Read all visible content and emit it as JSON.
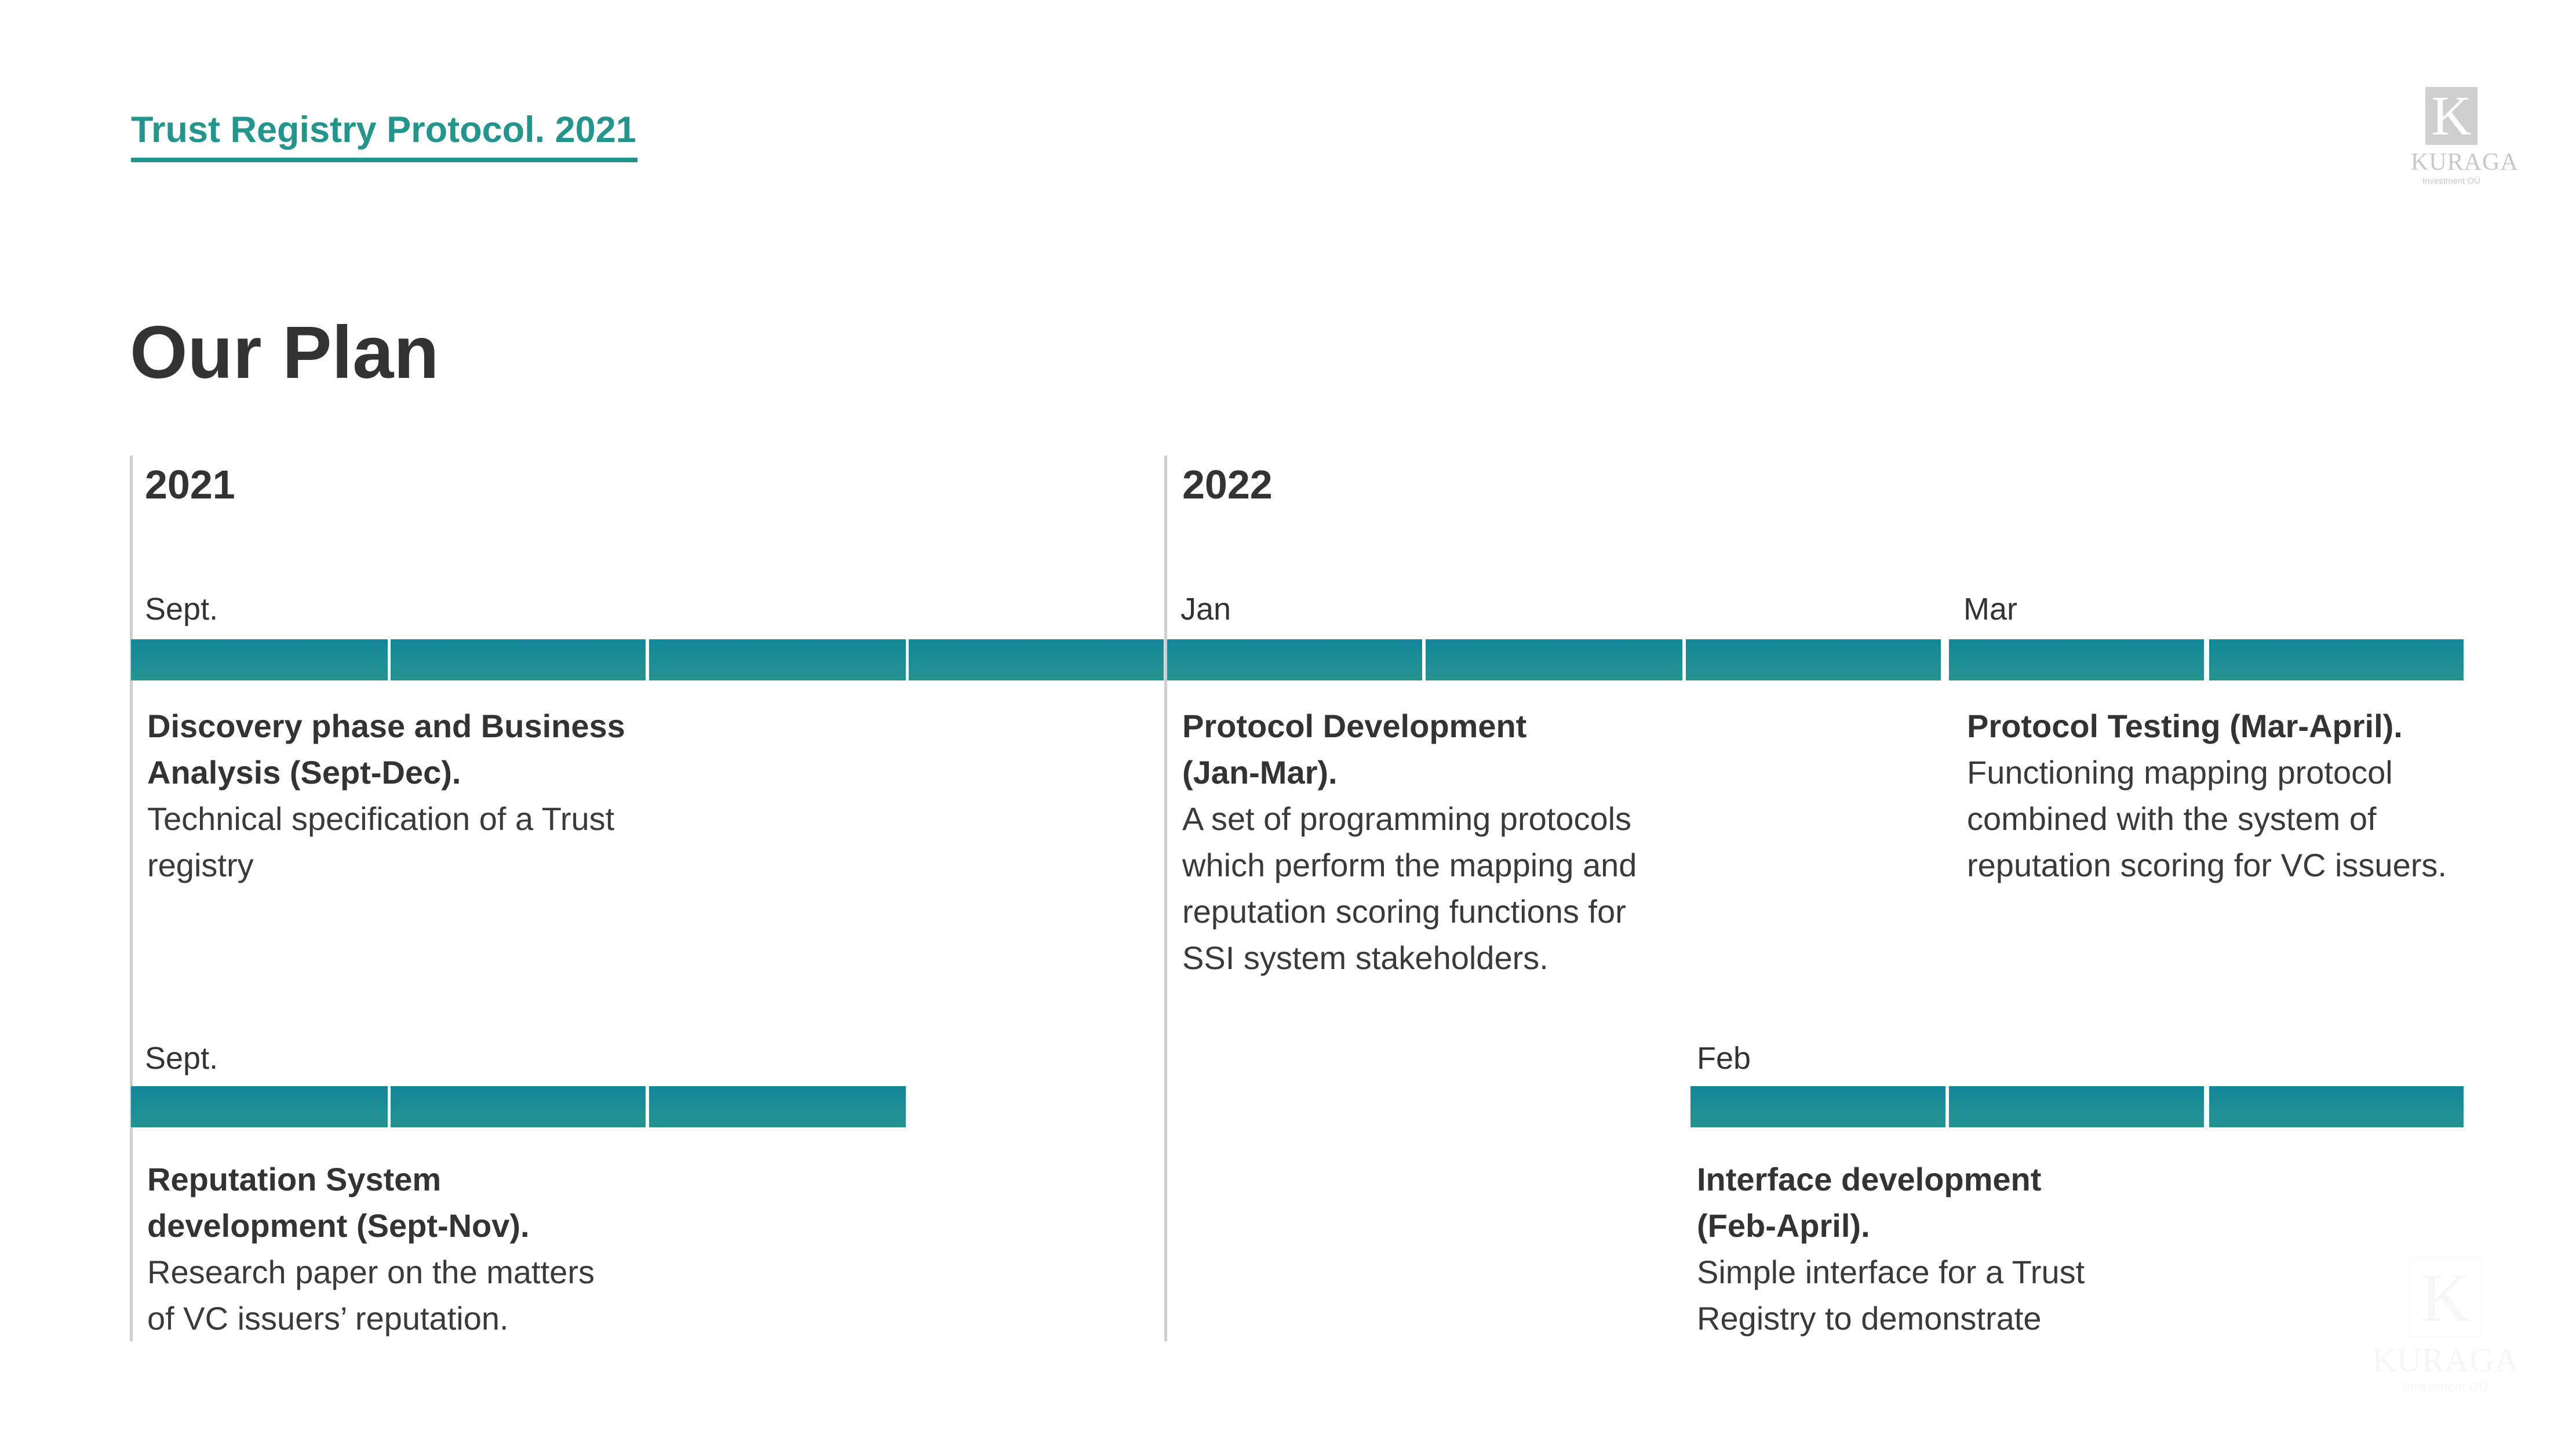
{
  "header": {
    "title": "Trust Registry Protocol. 2021"
  },
  "page_title": "Our Plan",
  "brand": {
    "logo_letter": "K",
    "name": "KURAGA",
    "subtitle": "Investment OÜ",
    "accent_color": "#22958c",
    "bar_color": "#1a8d96"
  },
  "years": [
    "2021",
    "2022"
  ],
  "row1": {
    "months": [
      "Sept.",
      "Jan",
      "Mar"
    ],
    "items": [
      {
        "title_lines": [
          "Discovery phase and Business",
          "Analysis (Sept-Dec)."
        ],
        "desc_lines": [
          "Technical specification of a Trust",
          "registry"
        ]
      },
      {
        "title_lines": [
          "Protocol Development",
          "(Jan-Mar)."
        ],
        "desc_lines": [
          "A set of programming protocols",
          "which perform the mapping and",
          "reputation scoring functions for",
          "SSI system stakeholders."
        ]
      },
      {
        "title_lines": [
          "Protocol Testing (Mar-April)."
        ],
        "desc_lines": [
          "Functioning mapping protocol",
          "combined with the system of",
          "reputation scoring for VC issuers."
        ]
      }
    ]
  },
  "row2": {
    "months": [
      "Sept.",
      "Feb"
    ],
    "items": [
      {
        "title_lines": [
          "Reputation System",
          "development (Sept-Nov)."
        ],
        "desc_lines": [
          "Research paper on the matters",
          "of VC issuers’ reputation."
        ]
      },
      {
        "title_lines": [
          "Interface development",
          "(Feb-April)."
        ],
        "desc_lines": [
          "Simple interface for a Trust",
          "Registry to demonstrate"
        ]
      }
    ]
  }
}
